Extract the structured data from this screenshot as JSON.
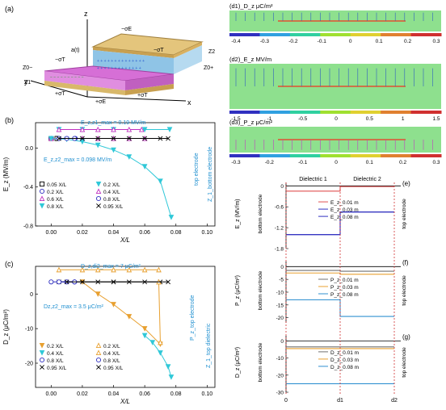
{
  "panel_labels": {
    "a": "(a)",
    "b": "(b)",
    "c": "(c)",
    "d1": "(d1)",
    "d2": "(d2)",
    "d3": "(d3)",
    "e": "(e)",
    "f": "(f)",
    "g": "(g)"
  },
  "schematic": {
    "axis_z": "z",
    "axis_x": "x",
    "axis_y": "y",
    "labels": [
      "−σE",
      "−σT",
      "Z2",
      "a(t)",
      "−σT",
      "Z0−",
      "Z1",
      "+σT",
      "+σE",
      "+σT",
      "Z0+"
    ],
    "colors": {
      "top_plate": "#d8b86a",
      "dielectric_top": "#9ec9e8",
      "dielectric_bottom": "#d66fd6",
      "bottom_plate": "#d8b86a"
    }
  },
  "chart_data": [
    {
      "id": "b",
      "type": "line",
      "xlabel": "X/L",
      "ylabel": "E_z (MV/m)",
      "xlim": [
        -0.01,
        0.105
      ],
      "ylim": [
        -0.8,
        0.26
      ],
      "xticks": [
        0.0,
        0.02,
        0.04,
        0.06,
        0.08,
        0.1
      ],
      "xtick_labels": [
        "0.00",
        "0.02",
        "0.04",
        "0.06",
        "0.08",
        "0.10"
      ],
      "yticks": [
        -0.8,
        -0.4,
        0.0
      ],
      "ytick_labels": [
        "-0.8",
        "-0.4",
        "0.0"
      ],
      "annotations": [
        "E_z,z1_max = 0.19 MV/m",
        "E_z,z2_max = 0.098 MV/m",
        "Z_1_bottom electrode",
        "top electrode"
      ],
      "legend": [
        "0.05 X/L",
        "0.2 X/L",
        "0.6 X/L",
        "0.8 X/L",
        "0.2 X/L",
        "0.4 X/L",
        "0.8 X/L",
        "0.95 X/L"
      ],
      "legend_placement": "lower-left",
      "series": [
        {
          "name": "0.05 X/L",
          "color": "#000000",
          "marker": "square",
          "x": [
            0,
            0.0038
          ],
          "y": [
            0.098,
            0.098
          ]
        },
        {
          "name": "0.2 X/L",
          "color": "#3030c0",
          "marker": "circle",
          "x": [
            0,
            0.0155
          ],
          "y": [
            0.098,
            0.098
          ]
        },
        {
          "name": "0.6 X/L",
          "color": "#c030c0",
          "marker": "triangle-up",
          "x": [
            0,
            0.02,
            0.03,
            0.04,
            0.05,
            0.06
          ],
          "y": [
            0.098,
            0.098,
            0.098,
            0.098,
            0.098,
            0.098
          ]
        },
        {
          "name": "0.8 X/L",
          "color": "#30c8d8",
          "marker": "triangle-down",
          "x": [
            0,
            0.01,
            0.02,
            0.03,
            0.04,
            0.05,
            0.06,
            0.07,
            0.077
          ],
          "y": [
            0.098,
            0.09,
            0.065,
            0.03,
            -0.02,
            -0.09,
            -0.19,
            -0.34,
            -0.71
          ]
        },
        {
          "name": "0.2 X/L",
          "color": "#30c8d8",
          "marker": "triangle-down",
          "x": [
            0.005,
            0.02,
            0.04,
            0.06,
            0.076
          ],
          "y": [
            0.19,
            0.19,
            0.19,
            0.19,
            0.19
          ]
        },
        {
          "name": "0.4 X/L",
          "color": "#c030c0",
          "marker": "triangle-up",
          "x": [
            0.005,
            0.02,
            0.03,
            0.04,
            0.05,
            0.058
          ],
          "y": [
            0.19,
            0.19,
            0.19,
            0.19,
            0.19,
            0.19
          ]
        },
        {
          "name": "0.8 X/L",
          "color": "#3030c0",
          "marker": "circle",
          "x": [
            0.005,
            0.01,
            0.015
          ],
          "y": [
            0.098,
            0.098,
            0.098
          ]
        },
        {
          "name": "0.95 X/L",
          "color": "#000000",
          "marker": "cross",
          "x": [
            0.005,
            0.02,
            0.03,
            0.04,
            0.05,
            0.06,
            0.07,
            0.075
          ],
          "y": [
            0.098,
            0.098,
            0.098,
            0.098,
            0.098,
            0.098,
            0.098,
            0.098
          ]
        }
      ]
    },
    {
      "id": "c",
      "type": "line",
      "xlabel": "X/L",
      "ylabel": "D_z (μC/m²)",
      "xlim": [
        -0.01,
        0.105
      ],
      "ylim": [
        -27,
        8
      ],
      "xticks": [
        0.0,
        0.02,
        0.04,
        0.06,
        0.08,
        0.1
      ],
      "xtick_labels": [
        "0.00",
        "0.02",
        "0.04",
        "0.06",
        "0.08",
        "0.10"
      ],
      "yticks": [
        -20,
        -10,
        0
      ],
      "ytick_labels": [
        "-20",
        "-10",
        "0"
      ],
      "annotations": [
        "D_z,di2_max = 7 μC/m²",
        "Dz,z2_max = 3.5 μC/m²",
        "P_z_top electrode",
        "Z_1_top dielectric"
      ],
      "legend": [
        "0.2 X/L",
        "0.4 X/L",
        "0.8 X/L",
        "0.95 X/L",
        "0.2 X/L",
        "0.4 X/L",
        "0.8 X/L",
        "0.95 X/L"
      ],
      "legend_placement": "lower-left",
      "series": [
        {
          "name": "0.2 X/L",
          "color": "#e8a030",
          "marker": "triangle-down",
          "x": [
            0.02,
            0.03,
            0.04,
            0.05,
            0.06,
            0.07
          ],
          "y": [
            3.5,
            0,
            -3,
            -6.5,
            -10,
            -14.5
          ]
        },
        {
          "name": "0.4 X/L",
          "color": "#30c8d8",
          "marker": "triangle-down",
          "x": [
            0.06,
            0.065,
            0.07,
            0.075,
            0.077
          ],
          "y": [
            -12,
            -14,
            -17,
            -21,
            -24
          ]
        },
        {
          "name": "0.8 X/L",
          "color": "#3030c0",
          "marker": "circle",
          "x": [
            0,
            0.01,
            0.015
          ],
          "y": [
            3.5,
            3.5,
            3.5
          ]
        },
        {
          "name": "0.95 X/L",
          "color": "#000000",
          "marker": "cross",
          "x": [
            0.005,
            0.02,
            0.03,
            0.04,
            0.05,
            0.06,
            0.07
          ],
          "y": [
            3.5,
            3.5,
            3.5,
            3.5,
            3.5,
            3.5,
            3.5
          ]
        },
        {
          "name": "0.2 X/L",
          "color": "#e8a030",
          "marker": "triangle-up",
          "x": [
            0.005,
            0.02,
            0.03,
            0.04,
            0.05,
            0.06,
            0.069
          ],
          "y": [
            7,
            7,
            7,
            7,
            7,
            7,
            7
          ]
        },
        {
          "name": "0.4 X/L",
          "color": "#e8a030",
          "marker": "triangle-up",
          "x": [
            0.069,
            0.07
          ],
          "y": [
            3.5,
            -14
          ]
        },
        {
          "name": "0.8 X/L",
          "color": "#3030c0",
          "marker": "circle",
          "x": [
            0.005,
            0.015
          ],
          "y": [
            3.5,
            3.5
          ]
        },
        {
          "name": "0.95 X/L",
          "color": "#000000",
          "marker": "cross",
          "x": [
            0.01,
            0.04,
            0.075
          ],
          "y": [
            3.5,
            3.5,
            3.5
          ]
        }
      ]
    },
    {
      "id": "d1",
      "type": "heatmap",
      "title": "D_z μC/m²",
      "colorbar_ticks": [
        "-0.4",
        "-0.3",
        "-0.2",
        "-0.1",
        "0",
        "0.1",
        "0.2",
        "0.3"
      ]
    },
    {
      "id": "d2",
      "type": "heatmap",
      "title": "E_z MV/m",
      "colorbar_ticks": [
        "-1.5",
        "-1",
        "-0.5",
        "0",
        "0.5",
        "1",
        "1.5"
      ]
    },
    {
      "id": "d3",
      "type": "heatmap",
      "title": "P_z μC/m²",
      "colorbar_ticks": [
        "-0.3",
        "-0.2",
        "-0.1",
        "0",
        "0.1",
        "0.2",
        "0.3"
      ]
    },
    {
      "id": "e",
      "type": "line",
      "ylabel": "E_z (MV/m)",
      "yticks": [
        0.0,
        -0.6,
        -1.2,
        -1.8
      ],
      "ytick_labels": [
        "0",
        "-0.6",
        "-1.2",
        "-1.8"
      ],
      "ylim": [
        -1.8,
        0.1
      ],
      "regions": [
        "Dielectric 1",
        "Dielectric 2"
      ],
      "side_labels": [
        "bottom electrode",
        "top electrode"
      ],
      "legend": [
        "E_z_0.01 m",
        "E_z_0.03 m",
        "E_z_0.08 m"
      ],
      "series": [
        {
          "name": "E_z_0.01 m",
          "color": "#e05050",
          "x": [
            0,
            1,
            1,
            2
          ],
          "y": [
            -0.15,
            -0.15,
            -0.02,
            -0.02
          ]
        },
        {
          "name": "E_z_0.03 m",
          "color": "#3030c0",
          "x": [
            0,
            1,
            1,
            2
          ],
          "y": [
            -1.4,
            -1.4,
            -0.75,
            -0.75
          ]
        },
        {
          "name": "E_z_0.08 m",
          "color": "#3030c0",
          "x": [
            0,
            1,
            1,
            2
          ],
          "y": [
            -1.4,
            -1.4,
            -0.75,
            -0.75
          ]
        }
      ]
    },
    {
      "id": "f",
      "type": "line",
      "ylabel": "P_z (μC/m²)",
      "yticks": [
        0,
        -5,
        -10,
        -15,
        -20
      ],
      "ytick_labels": [
        "0",
        "-5",
        "-10",
        "-15",
        "-20"
      ],
      "ylim": [
        -22,
        2
      ],
      "side_labels": [
        "bottom electrode",
        "top electrode"
      ],
      "legend": [
        "P_z_0.01 m",
        "P_z_0.03 m",
        "P_z_0.08 m"
      ],
      "series": [
        {
          "name": "P_z_0.01 m",
          "color": "#707070",
          "x": [
            0,
            1,
            1,
            2
          ],
          "y": [
            -1.5,
            -1.5,
            -1.8,
            -1.8
          ]
        },
        {
          "name": "P_z_0.03 m",
          "color": "#e8a030",
          "x": [
            0,
            1,
            1,
            2
          ],
          "y": [
            -2.5,
            -2.5,
            -3,
            -3
          ]
        },
        {
          "name": "P_z_0.08 m",
          "color": "#3090d0",
          "x": [
            0,
            1,
            1,
            2
          ],
          "y": [
            -13,
            -13,
            -19.5,
            -19.5
          ]
        }
      ]
    },
    {
      "id": "g",
      "type": "line",
      "ylabel": "D_z (μC/m²)",
      "xticks": [
        "0",
        "d1",
        "d2"
      ],
      "yticks": [
        0,
        -10,
        -20,
        -30
      ],
      "ytick_labels": [
        "0",
        "-10",
        "-20",
        "-30"
      ],
      "ylim": [
        -30,
        3
      ],
      "side_labels": [
        "bottom electrode",
        "top electrode"
      ],
      "legend": [
        "D_z_0.01 m",
        "D_z_0.03 m",
        "D_z_0.08 m"
      ],
      "series": [
        {
          "name": "D_z_0.01 m",
          "color": "#707070",
          "x": [
            0,
            2
          ],
          "y": [
            -3.5,
            -3.5
          ]
        },
        {
          "name": "D_z_0.03 m",
          "color": "#e8a030",
          "x": [
            0,
            2
          ],
          "y": [
            -4.5,
            -4.5
          ]
        },
        {
          "name": "D_z_0.08 m",
          "color": "#3090d0",
          "x": [
            0,
            2
          ],
          "y": [
            -25,
            -25
          ]
        }
      ]
    }
  ]
}
